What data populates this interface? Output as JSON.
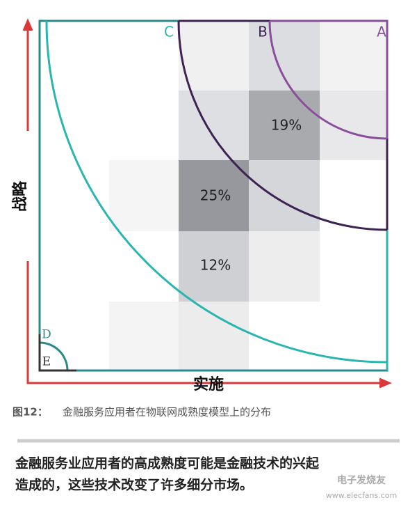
{
  "diagram": {
    "zone_labels": [
      "A",
      "B",
      "C",
      "D",
      "E"
    ],
    "cell_labels": [
      "19%",
      "25%",
      "12%"
    ],
    "y_axis_label": "战略",
    "x_axis_label": "实施"
  },
  "caption": {
    "number": "图12：",
    "text": "金融服务应用者在物联网成熟度模型上的分布"
  },
  "body": {
    "lines": [
      "金融服务业应用者的高成熟度可能是金融技术的兴起",
      "造成的，这些技术改变了许多细分市场。"
    ]
  },
  "watermark": {
    "brand": "电子发烧友",
    "url": "www.elecfans.com"
  }
}
